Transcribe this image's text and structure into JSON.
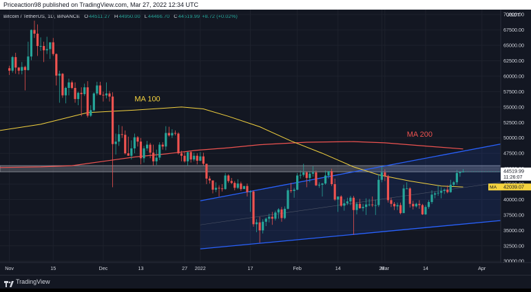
{
  "header": {
    "text": "Priceaction98 published on TradingView.com, Mar 27, 2022 12:34 UTC"
  },
  "legend": {
    "symbol": "Bitcoin / TetherUS, 1D, BINANCE",
    "o_key": "O",
    "o": "44511.27",
    "h_key": "H",
    "h": "44950.00",
    "l_key": "L",
    "l": "44466.70",
    "c_key": "C",
    "c": "44519.99",
    "chg": "+8.72 (+0.02%)"
  },
  "currency": "USDT",
  "price_tag": {
    "price": "44519.99",
    "countdown": "11:26:07"
  },
  "ma_tag": {
    "key": "MA",
    "value": "42039.07"
  },
  "footer": {
    "brand": "TradingView"
  },
  "chart_data": {
    "type": "candlestick",
    "title": "Bitcoin / TetherUS, 1D, BINANCE",
    "ylim": [
      29800,
      70800
    ],
    "y_ticks": [
      30000,
      32500,
      35000,
      37500,
      40000,
      42500,
      45000,
      47500,
      50000,
      52500,
      55000,
      57500,
      60000,
      62500,
      65000,
      67500,
      70000
    ],
    "y_tick_labels": [
      "30000.00",
      "32500.00",
      "35000.00",
      "37500.00",
      "40000.00",
      "42500.00",
      "45000.00",
      "47500.00",
      "50000.00",
      "52500.00",
      "55000.00",
      "57500.00",
      "60000.00",
      "62500.00",
      "65000.00",
      "67500.00",
      "70000.00"
    ],
    "x_ticks": [
      {
        "label": "Nov",
        "day": 0
      },
      {
        "label": "15",
        "day": 14
      },
      {
        "label": "Dec",
        "day": 30
      },
      {
        "label": "13",
        "day": 42
      },
      {
        "label": "27",
        "day": 56
      },
      {
        "label": "2022",
        "day": 61
      },
      {
        "label": "17",
        "day": 77
      },
      {
        "label": "Feb",
        "day": 92
      },
      {
        "label": "14",
        "day": 105
      },
      {
        "label": "28",
        "day": 119
      },
      {
        "label": "Mar",
        "day": 120
      },
      {
        "label": "14",
        "day": 133
      },
      {
        "label": "Apr",
        "day": 151
      }
    ],
    "x_domain": [
      -3,
      157
    ],
    "last_day": 145,
    "support_zone": {
      "low": 44500,
      "high": 45500,
      "from_day": -3,
      "to_day": 157
    },
    "channel": {
      "lower": [
        [
          61,
          32000
        ],
        [
          157,
          36600
        ]
      ],
      "upper": [
        [
          61,
          39800
        ],
        [
          157,
          49000
        ]
      ],
      "mid": [
        [
          61,
          35900
        ],
        [
          157,
          42800
        ]
      ]
    },
    "ma100_label": "MA 100",
    "ma200_label": "MA 200",
    "ma100": [
      [
        -3,
        51200
      ],
      [
        10,
        52200
      ],
      [
        25,
        54100
      ],
      [
        40,
        54500
      ],
      [
        55,
        55000
      ],
      [
        62,
        54700
      ],
      [
        70,
        53500
      ],
      [
        80,
        51800
      ],
      [
        90,
        49500
      ],
      [
        100,
        47500
      ],
      [
        110,
        45300
      ],
      [
        118,
        44000
      ],
      [
        128,
        43000
      ],
      [
        138,
        42200
      ],
      [
        145,
        42039
      ]
    ],
    "ma200": [
      [
        -3,
        45200
      ],
      [
        10,
        45300
      ],
      [
        20,
        45500
      ],
      [
        30,
        46200
      ],
      [
        40,
        46900
      ],
      [
        50,
        47400
      ],
      [
        60,
        48000
      ],
      [
        70,
        48400
      ],
      [
        80,
        48900
      ],
      [
        95,
        49300
      ],
      [
        110,
        49400
      ],
      [
        120,
        49200
      ],
      [
        130,
        48800
      ],
      [
        145,
        48200
      ]
    ],
    "candles": [
      [
        0,
        61300,
        61700,
        60200,
        60900
      ],
      [
        1,
        60900,
        63300,
        60600,
        63100
      ],
      [
        2,
        63100,
        63800,
        60400,
        61400
      ],
      [
        3,
        61400,
        61500,
        60300,
        60900
      ],
      [
        4,
        60900,
        62300,
        60300,
        61500
      ],
      [
        5,
        61500,
        61700,
        57700,
        61000
      ],
      [
        6,
        61000,
        65600,
        60900,
        63200
      ],
      [
        7,
        63200,
        67600,
        62600,
        67500
      ],
      [
        8,
        67500,
        69000,
        66200,
        66900
      ],
      [
        9,
        66900,
        68400,
        63300,
        64900
      ],
      [
        10,
        64900,
        66300,
        64100,
        64900
      ],
      [
        11,
        64900,
        65600,
        62300,
        64200
      ],
      [
        12,
        64200,
        66400,
        63600,
        64400
      ],
      [
        13,
        64400,
        65500,
        62800,
        65500
      ],
      [
        14,
        65500,
        66200,
        63300,
        63600
      ],
      [
        15,
        63600,
        63700,
        58500,
        60100
      ],
      [
        16,
        60100,
        60900,
        55700,
        60400
      ],
      [
        17,
        60400,
        60500,
        56500,
        56900
      ],
      [
        18,
        56900,
        58300,
        55600,
        58100
      ],
      [
        19,
        58100,
        59600,
        56900,
        59000
      ],
      [
        20,
        59000,
        59300,
        57900,
        58100
      ],
      [
        21,
        58100,
        59000,
        55700,
        56300
      ],
      [
        22,
        56300,
        57500,
        55300,
        57300
      ],
      [
        23,
        57300,
        58200,
        53500,
        57100
      ],
      [
        24,
        57100,
        58800,
        56800,
        58200
      ],
      [
        25,
        58200,
        59200,
        53300,
        53600
      ],
      [
        26,
        53600,
        55300,
        53400,
        54500
      ],
      [
        27,
        54500,
        57400,
        54300,
        57200
      ],
      [
        28,
        57200,
        59100,
        56900,
        58500
      ],
      [
        29,
        58500,
        59100,
        56900,
        57000
      ],
      [
        30,
        57000,
        57500,
        55900,
        56900
      ],
      [
        31,
        56900,
        59000,
        56400,
        57200
      ],
      [
        32,
        57200,
        57600,
        55900,
        56700
      ],
      [
        33,
        56700,
        57400,
        42000,
        49000
      ],
      [
        34,
        49000,
        50700,
        47300,
        49400
      ],
      [
        35,
        49400,
        52100,
        48700,
        50600
      ],
      [
        36,
        50600,
        51900,
        50000,
        50500
      ],
      [
        37,
        50500,
        51200,
        47300,
        47500
      ],
      [
        38,
        47500,
        50200,
        47400,
        47100
      ],
      [
        39,
        47100,
        49600,
        46500,
        48300
      ],
      [
        40,
        48300,
        50700,
        47500,
        50100
      ],
      [
        41,
        50100,
        50300,
        48600,
        49400
      ],
      [
        42,
        49400,
        50000,
        45700,
        46700
      ],
      [
        43,
        46700,
        48700,
        46000,
        48300
      ],
      [
        44,
        48300,
        49500,
        47900,
        48900
      ],
      [
        45,
        48900,
        49200,
        46700,
        47600
      ],
      [
        46,
        47600,
        48900,
        45500,
        46200
      ],
      [
        47,
        46200,
        48100,
        45600,
        46800
      ],
      [
        48,
        46800,
        49300,
        46400,
        48900
      ],
      [
        49,
        48900,
        49300,
        48100,
        48600
      ],
      [
        50,
        48600,
        51900,
        48000,
        50800
      ],
      [
        51,
        50800,
        51800,
        50200,
        50400
      ],
      [
        52,
        50400,
        51400,
        50000,
        50800
      ],
      [
        53,
        50800,
        51200,
        50400,
        50700
      ],
      [
        54,
        50700,
        50900,
        47300,
        47500
      ],
      [
        55,
        47500,
        47900,
        46200,
        47100
      ],
      [
        56,
        47100,
        47800,
        46000,
        46200
      ],
      [
        57,
        46200,
        47700,
        45500,
        47700
      ],
      [
        58,
        47700,
        47900,
        46000,
        46500
      ],
      [
        59,
        46500,
        47600,
        46200,
        47100
      ],
      [
        60,
        47100,
        47500,
        45700,
        46300
      ],
      [
        61,
        46300,
        47700,
        46200,
        47000
      ],
      [
        62,
        47000,
        47600,
        45500,
        45800
      ],
      [
        63,
        45800,
        45800,
        42500,
        43400
      ],
      [
        64,
        43400,
        43800,
        42600,
        43100
      ],
      [
        65,
        43100,
        43100,
        41000,
        41600
      ],
      [
        66,
        41600,
        42800,
        41200,
        41900
      ],
      [
        67,
        41900,
        42300,
        40500,
        41800
      ],
      [
        68,
        41800,
        42500,
        41300,
        41700
      ],
      [
        69,
        41700,
        44300,
        41600,
        43900
      ],
      [
        70,
        43900,
        44100,
        42700,
        43000
      ],
      [
        71,
        43000,
        43500,
        42500,
        42700
      ],
      [
        72,
        42700,
        43000,
        41500,
        41900
      ],
      [
        73,
        41900,
        43300,
        41700,
        42600
      ],
      [
        74,
        42600,
        42900,
        41400,
        41700
      ],
      [
        75,
        41700,
        42200,
        42000,
        42200
      ],
      [
        76,
        42200,
        42600,
        40500,
        41200
      ],
      [
        77,
        41200,
        41500,
        38000,
        41300
      ],
      [
        78,
        41300,
        41500,
        35600,
        36000
      ],
      [
        79,
        36000,
        36800,
        34700,
        36300
      ],
      [
        80,
        36300,
        37200,
        33000,
        35000
      ],
      [
        81,
        35000,
        36800,
        34500,
        36400
      ],
      [
        82,
        36400,
        37100,
        35700,
        36900
      ],
      [
        83,
        36900,
        37700,
        36300,
        37200
      ],
      [
        84,
        37200,
        38000,
        35900,
        36900
      ],
      [
        85,
        36900,
        38200,
        36600,
        37900
      ],
      [
        86,
        37900,
        38600,
        36900,
        38400
      ],
      [
        87,
        38400,
        38800,
        36400,
        37000
      ],
      [
        88,
        37000,
        38900,
        36800,
        38500
      ],
      [
        89,
        38500,
        41800,
        38400,
        41500
      ],
      [
        90,
        41500,
        42700,
        41100,
        41400
      ],
      [
        91,
        41400,
        41900,
        40300,
        41600
      ],
      [
        92,
        41600,
        44300,
        41500,
        43900
      ],
      [
        93,
        43900,
        44700,
        43400,
        44000
      ],
      [
        94,
        44000,
        45800,
        43700,
        44400
      ],
      [
        95,
        44400,
        44600,
        42000,
        43500
      ],
      [
        96,
        43500,
        44600,
        42800,
        44200
      ],
      [
        97,
        44200,
        45400,
        43700,
        44400
      ],
      [
        98,
        44400,
        44700,
        42200,
        42300
      ],
      [
        99,
        42300,
        42800,
        41900,
        42400
      ],
      [
        100,
        42400,
        42700,
        40500,
        42600
      ],
      [
        101,
        42600,
        44700,
        42400,
        43900
      ],
      [
        102,
        43900,
        44400,
        43400,
        44600
      ],
      [
        103,
        44600,
        45000,
        42200,
        42500
      ],
      [
        104,
        42500,
        43400,
        39800,
        40000
      ],
      [
        105,
        40000,
        40200,
        38000,
        40500
      ],
      [
        106,
        40500,
        40700,
        38800,
        39000
      ],
      [
        107,
        39000,
        40000,
        38200,
        39400
      ],
      [
        108,
        39400,
        40300,
        39100,
        39700
      ],
      [
        109,
        39700,
        40600,
        39100,
        40300
      ],
      [
        110,
        40300,
        40600,
        34300,
        38300
      ],
      [
        111,
        38300,
        39600,
        37600,
        39300
      ],
      [
        112,
        39300,
        40100,
        38500,
        38600
      ],
      [
        113,
        38600,
        39300,
        38100,
        38800
      ],
      [
        114,
        38800,
        40200,
        37500,
        39200
      ],
      [
        115,
        39200,
        40100,
        38900,
        39200
      ],
      [
        116,
        39200,
        40500,
        38800,
        39100
      ],
      [
        117,
        39100,
        40000,
        37500,
        39100
      ],
      [
        118,
        39100,
        44100,
        38800,
        43200
      ],
      [
        119,
        43200,
        45400,
        42800,
        44400
      ],
      [
        120,
        44400,
        44900,
        43000,
        43800
      ],
      [
        121,
        43800,
        44000,
        39500,
        39900
      ],
      [
        122,
        39900,
        40300,
        38800,
        39300
      ],
      [
        123,
        39300,
        39600,
        38300,
        38900
      ],
      [
        124,
        38900,
        39500,
        38300,
        39100
      ],
      [
        125,
        39100,
        39500,
        37600,
        37800
      ],
      [
        126,
        37800,
        42400,
        37900,
        41800
      ],
      [
        127,
        41800,
        42800,
        41700,
        41800
      ],
      [
        128,
        41800,
        42000,
        38700,
        39300
      ],
      [
        129,
        39300,
        39800,
        38400,
        38900
      ],
      [
        130,
        38900,
        39500,
        38700,
        39300
      ],
      [
        131,
        39300,
        39900,
        38500,
        39100
      ],
      [
        132,
        39100,
        39300,
        37500,
        37600
      ],
      [
        133,
        37600,
        39100,
        37500,
        38800
      ],
      [
        134,
        38800,
        39900,
        38500,
        39600
      ],
      [
        135,
        39600,
        41500,
        39300,
        40800
      ],
      [
        136,
        40800,
        41300,
        40200,
        41000
      ],
      [
        137,
        41000,
        42300,
        40600,
        41100
      ],
      [
        138,
        41100,
        42000,
        40200,
        41400
      ],
      [
        139,
        41400,
        41800,
        40900,
        41600
      ],
      [
        140,
        41600,
        42300,
        41000,
        41200
      ],
      [
        141,
        41200,
        43200,
        41100,
        42400
      ],
      [
        142,
        42400,
        43000,
        42100,
        42800
      ],
      [
        143,
        42800,
        44800,
        42400,
        44300
      ],
      [
        144,
        44300,
        44500,
        43700,
        44500
      ],
      [
        145,
        44511,
        44950,
        44466,
        44520
      ]
    ]
  },
  "colors": {
    "up": "#26a69a",
    "down": "#ef5350",
    "ma100": "#f5d33f",
    "ma200": "#ef5350",
    "channel": "#2962ff",
    "zone": "#b2b5be",
    "bg": "#131722",
    "text": "#d1d4dc"
  }
}
